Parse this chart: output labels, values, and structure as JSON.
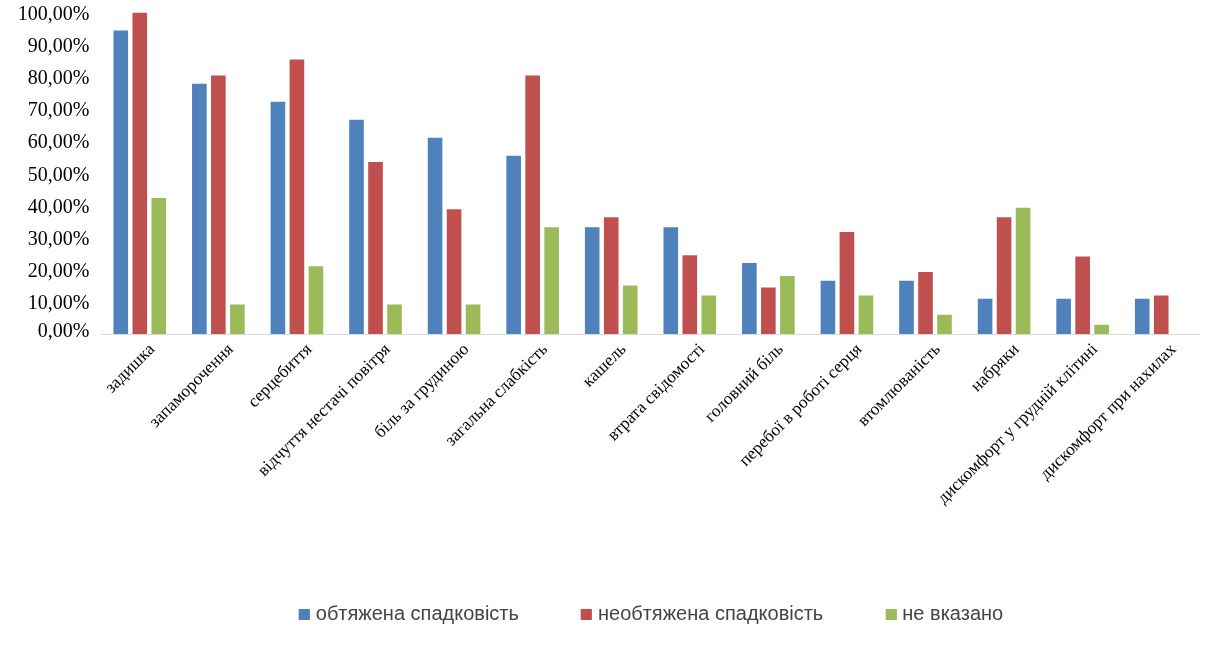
{
  "chart_data": {
    "type": "bar",
    "categories": [
      "задишка",
      "запаморочення",
      "серцебиття",
      "відчуття нестачі повітря",
      "біль за грудиною",
      "загальна слабкість",
      "кашель",
      "втрата свідомості",
      "головний біль",
      "перебої в роботі серця",
      "втомлюваність",
      "набряки",
      "дискомфорт у грудній клітині",
      "дискомфорт при нахилах"
    ],
    "series": [
      {
        "name": "обтяжена спадковість",
        "color": "#4f81bd",
        "values": [
          94.4,
          77.9,
          72.3,
          66.7,
          61.1,
          55.5,
          33.3,
          33.3,
          22.2,
          16.7,
          16.7,
          11.1,
          11.1,
          11.1
        ]
      },
      {
        "name": "необтяжена спадковість",
        "color": "#c0504d",
        "values": [
          100,
          80.4,
          85.4,
          53.6,
          38.9,
          80.4,
          36.4,
          24.6,
          14.6,
          31.8,
          19.4,
          36.4,
          24.2,
          12.1
        ]
      },
      {
        "name": "не вказано",
        "color": "#9bbb59",
        "values": [
          42.4,
          9.3,
          21.2,
          9.3,
          9.3,
          33.3,
          15.2,
          12.1,
          18.2,
          12.1,
          6.1,
          39.4,
          3.0,
          null
        ]
      }
    ],
    "ylim": [
      0,
      100
    ],
    "yticks": [
      {
        "value": 0,
        "label": "0,00%"
      },
      {
        "value": 10,
        "label": "10,00%"
      },
      {
        "value": 20,
        "label": "20,00%"
      },
      {
        "value": 30,
        "label": "30,00%"
      },
      {
        "value": 40,
        "label": "40,00%"
      },
      {
        "value": 50,
        "label": "50,00%"
      },
      {
        "value": 60,
        "label": "60,00%"
      },
      {
        "value": 70,
        "label": "70,00%"
      },
      {
        "value": 80,
        "label": "80,00%"
      },
      {
        "value": 90,
        "label": "90,00%"
      },
      {
        "value": 100,
        "label": "100,00%"
      }
    ],
    "grid": false,
    "legend": "bottom"
  }
}
